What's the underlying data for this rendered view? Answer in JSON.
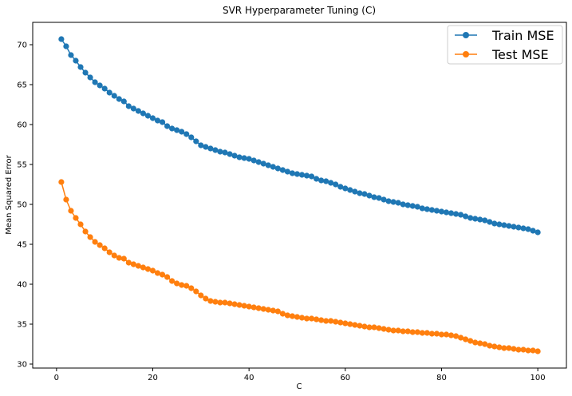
{
  "chart_data": {
    "type": "line",
    "title": "SVR Hyperparameter Tuning (C)",
    "xlabel": "C",
    "ylabel": "Mean Squared Error",
    "xlim": [
      -4.95,
      105.95
    ],
    "ylim": [
      29.5,
      72.8
    ],
    "xticks": [
      0,
      20,
      40,
      60,
      80,
      100
    ],
    "yticks": [
      30,
      35,
      40,
      45,
      50,
      55,
      60,
      65,
      70
    ],
    "grid": false,
    "legend_position": "top-right",
    "series": [
      {
        "name": "Train MSE",
        "color": "#1f77b4",
        "x": [
          1,
          2,
          3,
          4,
          5,
          6,
          7,
          8,
          9,
          10,
          11,
          12,
          13,
          14,
          15,
          16,
          17,
          18,
          19,
          20,
          21,
          22,
          23,
          24,
          25,
          26,
          27,
          28,
          29,
          30,
          31,
          32,
          33,
          34,
          35,
          36,
          37,
          38,
          39,
          40,
          41,
          42,
          43,
          44,
          45,
          46,
          47,
          48,
          49,
          50,
          51,
          52,
          53,
          54,
          55,
          56,
          57,
          58,
          59,
          60,
          61,
          62,
          63,
          64,
          65,
          66,
          67,
          68,
          69,
          70,
          71,
          72,
          73,
          74,
          75,
          76,
          77,
          78,
          79,
          80,
          81,
          82,
          83,
          84,
          85,
          86,
          87,
          88,
          89,
          90,
          91,
          92,
          93,
          94,
          95,
          96,
          97,
          98,
          99,
          100
        ],
        "values": [
          70.7,
          69.8,
          68.7,
          68.0,
          67.2,
          66.5,
          65.9,
          65.3,
          64.9,
          64.5,
          64.0,
          63.6,
          63.2,
          62.9,
          62.3,
          62.0,
          61.7,
          61.4,
          61.1,
          60.8,
          60.5,
          60.3,
          59.8,
          59.5,
          59.3,
          59.1,
          58.8,
          58.4,
          57.9,
          57.4,
          57.2,
          57.0,
          56.8,
          56.6,
          56.5,
          56.3,
          56.1,
          55.9,
          55.8,
          55.7,
          55.5,
          55.3,
          55.1,
          54.9,
          54.7,
          54.5,
          54.3,
          54.1,
          53.9,
          53.8,
          53.7,
          53.6,
          53.5,
          53.2,
          53.0,
          52.9,
          52.7,
          52.5,
          52.2,
          52.0,
          51.8,
          51.6,
          51.4,
          51.3,
          51.1,
          50.9,
          50.8,
          50.6,
          50.4,
          50.3,
          50.2,
          50.0,
          49.9,
          49.8,
          49.7,
          49.5,
          49.4,
          49.3,
          49.2,
          49.1,
          49.0,
          48.9,
          48.8,
          48.7,
          48.5,
          48.3,
          48.2,
          48.1,
          48.0,
          47.8,
          47.6,
          47.5,
          47.4,
          47.3,
          47.2,
          47.1,
          47.0,
          46.9,
          46.7,
          46.5
        ]
      },
      {
        "name": "Test MSE",
        "color": "#ff7f0e",
        "x": [
          1,
          2,
          3,
          4,
          5,
          6,
          7,
          8,
          9,
          10,
          11,
          12,
          13,
          14,
          15,
          16,
          17,
          18,
          19,
          20,
          21,
          22,
          23,
          24,
          25,
          26,
          27,
          28,
          29,
          30,
          31,
          32,
          33,
          34,
          35,
          36,
          37,
          38,
          39,
          40,
          41,
          42,
          43,
          44,
          45,
          46,
          47,
          48,
          49,
          50,
          51,
          52,
          53,
          54,
          55,
          56,
          57,
          58,
          59,
          60,
          61,
          62,
          63,
          64,
          65,
          66,
          67,
          68,
          69,
          70,
          71,
          72,
          73,
          74,
          75,
          76,
          77,
          78,
          79,
          80,
          81,
          82,
          83,
          84,
          85,
          86,
          87,
          88,
          89,
          90,
          91,
          92,
          93,
          94,
          95,
          96,
          97,
          98,
          99,
          100
        ],
        "values": [
          52.8,
          50.6,
          49.2,
          48.3,
          47.5,
          46.6,
          45.9,
          45.3,
          44.9,
          44.5,
          44.0,
          43.6,
          43.3,
          43.2,
          42.7,
          42.5,
          42.3,
          42.1,
          41.9,
          41.7,
          41.4,
          41.2,
          40.9,
          40.4,
          40.1,
          39.9,
          39.8,
          39.5,
          39.1,
          38.6,
          38.2,
          37.9,
          37.8,
          37.7,
          37.7,
          37.6,
          37.5,
          37.4,
          37.3,
          37.2,
          37.1,
          37.0,
          36.9,
          36.8,
          36.7,
          36.6,
          36.3,
          36.1,
          36.0,
          35.9,
          35.8,
          35.7,
          35.7,
          35.6,
          35.5,
          35.4,
          35.4,
          35.3,
          35.2,
          35.1,
          35.0,
          34.9,
          34.8,
          34.7,
          34.6,
          34.6,
          34.5,
          34.4,
          34.3,
          34.2,
          34.2,
          34.1,
          34.1,
          34.0,
          34.0,
          33.9,
          33.9,
          33.8,
          33.8,
          33.7,
          33.7,
          33.6,
          33.5,
          33.3,
          33.1,
          32.9,
          32.7,
          32.6,
          32.5,
          32.3,
          32.2,
          32.1,
          32.0,
          32.0,
          31.9,
          31.8,
          31.8,
          31.7,
          31.7,
          31.6
        ]
      }
    ]
  }
}
